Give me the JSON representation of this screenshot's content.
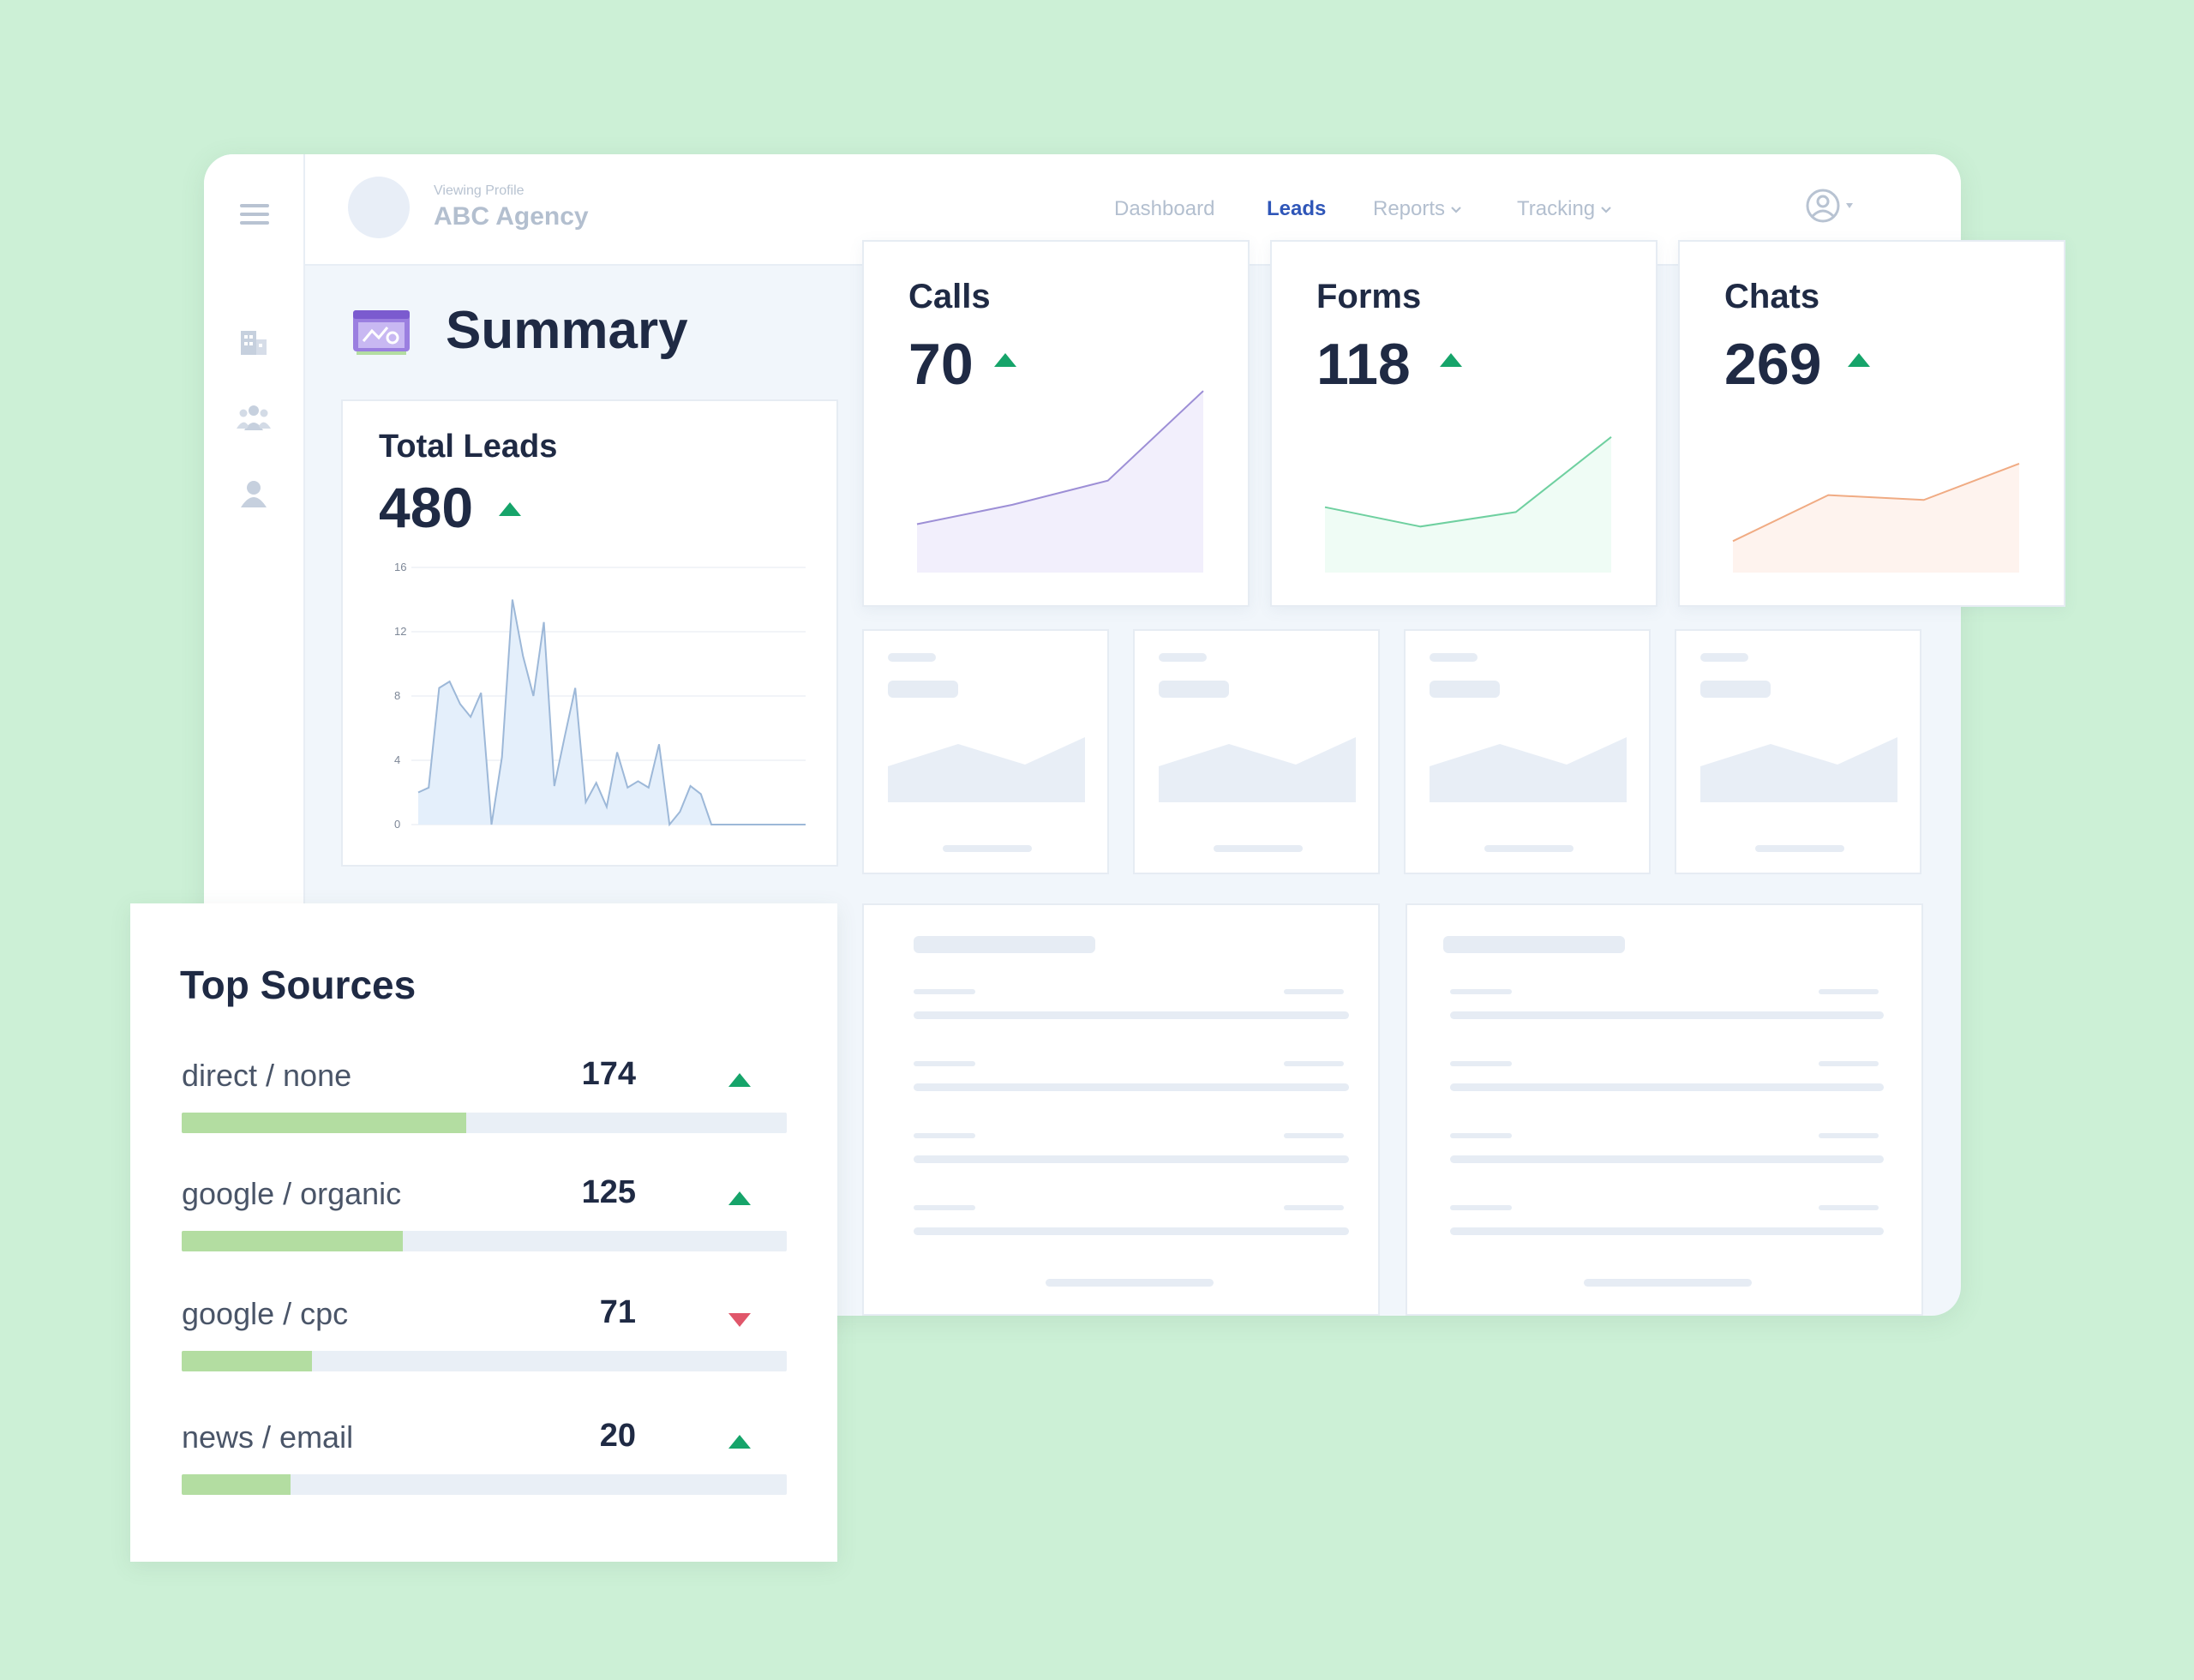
{
  "header": {
    "viewing_label": "Viewing Profile",
    "agency_name": "ABC Agency",
    "nav": [
      {
        "label": "Dashboard",
        "active": false
      },
      {
        "label": "Leads",
        "active": true
      },
      {
        "label": "Reports",
        "active": false,
        "dropdown": true
      },
      {
        "label": "Tracking",
        "active": false,
        "dropdown": true
      }
    ]
  },
  "sidebar": {
    "icons": [
      "menu-icon",
      "building-icon",
      "team-icon",
      "user-icon"
    ]
  },
  "summary": {
    "title": "Summary"
  },
  "total_leads": {
    "title": "Total Leads",
    "value": "480",
    "trend": "up"
  },
  "metrics": [
    {
      "title": "Calls",
      "value": "70",
      "trend": "up",
      "color": "#9d8fd6",
      "fill": "#f2effc"
    },
    {
      "title": "Forms",
      "value": "118",
      "trend": "up",
      "color": "#6fd0a0",
      "fill": "#effcf5"
    },
    {
      "title": "Chats",
      "value": "269",
      "trend": "up",
      "color": "#f0ab83",
      "fill": "#fef3ee"
    }
  ],
  "top_sources": {
    "title": "Top Sources",
    "items": [
      {
        "label": "direct / none",
        "value": "174",
        "trend": "up",
        "share": 0.47
      },
      {
        "label": "google / organic",
        "value": "125",
        "trend": "up",
        "share": 0.365
      },
      {
        "label": "google / cpc",
        "value": "71",
        "trend": "down",
        "share": 0.215
      },
      {
        "label": "news / email",
        "value": "20",
        "trend": "up",
        "share": 0.18
      }
    ]
  },
  "colors": {
    "background": "#ccf0d6",
    "trend_up": "#16a46a",
    "trend_down": "#e0566a",
    "active_nav": "#2f56b8",
    "bar_fill": "#b3dda1"
  },
  "chart_data": [
    {
      "type": "area",
      "series_of": "total_leads",
      "x": [
        1,
        2,
        3,
        4,
        5,
        6,
        7,
        8,
        9,
        10,
        11,
        12,
        13,
        14,
        15,
        16,
        17,
        18,
        19,
        20,
        21,
        22,
        23,
        24,
        25,
        26,
        27,
        28,
        29,
        30,
        31,
        32,
        33,
        34,
        35,
        36,
        37,
        38
      ],
      "values": [
        2,
        2.3,
        8.5,
        8.9,
        7.5,
        6.7,
        8.2,
        0,
        4.2,
        14,
        10.5,
        8,
        12.6,
        2.4,
        5.5,
        8.5,
        1.4,
        2.6,
        1.1,
        4.5,
        2.3,
        2.7,
        2.3,
        5,
        0,
        0.8,
        2.4,
        1.9,
        0,
        0,
        0,
        0,
        0,
        0,
        0,
        0,
        0,
        0
      ],
      "yticks": [
        "0",
        "4",
        "8",
        "12",
        "16"
      ],
      "ylim": [
        0,
        16
      ],
      "color": "#9db8d8",
      "fill": "#e4effb",
      "grid": true
    },
    {
      "type": "area",
      "series_of": "calls",
      "x": [
        0,
        1,
        2,
        3
      ],
      "values": [
        2,
        2.8,
        3.8,
        7.5
      ],
      "ylim": [
        0,
        8
      ],
      "color": "#9d8fd6",
      "fill": "#f2effc"
    },
    {
      "type": "area",
      "series_of": "forms",
      "x": [
        0,
        1,
        2,
        3
      ],
      "values": [
        2.7,
        1.9,
        2.5,
        5.6
      ],
      "ylim": [
        0,
        8
      ],
      "color": "#6fd0a0",
      "fill": "#effcf5"
    },
    {
      "type": "area",
      "series_of": "chats",
      "x": [
        0,
        1,
        2,
        3
      ],
      "values": [
        1.3,
        3.2,
        3.0,
        4.5
      ],
      "ylim": [
        0,
        8
      ],
      "color": "#f0ab83",
      "fill": "#fef3ee"
    }
  ]
}
